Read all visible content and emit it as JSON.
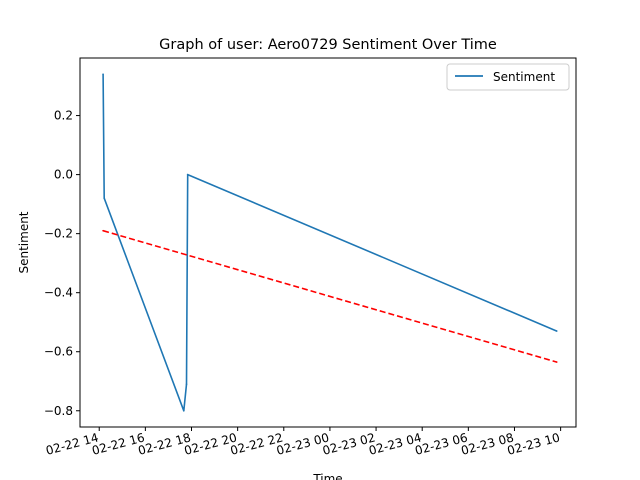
{
  "chart_data": {
    "type": "line",
    "title": "Graph of user: Aero0729 Sentiment Over Time",
    "xlabel": "Time",
    "ylabel": "Sentiment",
    "x_axis_kind": "datetime",
    "xlim": [
      "2022-02-22 13:10",
      "2022-02-23 10:40"
    ],
    "ylim": [
      -0.855,
      0.395
    ],
    "x_ticks": [
      {
        "t": "2022-02-22 14:00",
        "label": "02-22 14"
      },
      {
        "t": "2022-02-22 16:00",
        "label": "02-22 16"
      },
      {
        "t": "2022-02-22 18:00",
        "label": "02-22 18"
      },
      {
        "t": "2022-02-22 20:00",
        "label": "02-22 20"
      },
      {
        "t": "2022-02-22 22:00",
        "label": "02-22 22"
      },
      {
        "t": "2022-02-23 00:00",
        "label": "02-23 00"
      },
      {
        "t": "2022-02-23 02:00",
        "label": "02-23 02"
      },
      {
        "t": "2022-02-23 04:00",
        "label": "02-23 04"
      },
      {
        "t": "2022-02-23 06:00",
        "label": "02-23 06"
      },
      {
        "t": "2022-02-23 08:00",
        "label": "02-23 08"
      },
      {
        "t": "2022-02-23 10:00",
        "label": "02-23 10"
      }
    ],
    "y_ticks": [
      {
        "v": 0.2,
        "label": "0.2"
      },
      {
        "v": 0.0,
        "label": "0.0"
      },
      {
        "v": -0.2,
        "label": "−0.2"
      },
      {
        "v": -0.4,
        "label": "−0.4"
      },
      {
        "v": -0.6,
        "label": "−0.6"
      },
      {
        "v": -0.8,
        "label": "−0.8"
      }
    ],
    "series": [
      {
        "name": "Sentiment",
        "color": "#1f77b4",
        "style": "solid",
        "points": [
          {
            "x": "2022-02-22 14:10",
            "y": 0.34
          },
          {
            "x": "2022-02-22 14:13",
            "y": -0.08
          },
          {
            "x": "2022-02-22 17:40",
            "y": -0.8
          },
          {
            "x": "2022-02-22 17:47",
            "y": -0.71
          },
          {
            "x": "2022-02-22 17:50",
            "y": 0.0
          },
          {
            "x": "2022-02-23 09:50",
            "y": -0.53
          }
        ]
      },
      {
        "color": "#ff0000",
        "style": "dashed",
        "points": [
          {
            "x": "2022-02-22 14:10",
            "y": -0.19
          },
          {
            "x": "2022-02-23 09:50",
            "y": -0.635
          }
        ]
      }
    ],
    "grid": false,
    "legend": {
      "placement": "top-right",
      "entries": [
        "Sentiment"
      ]
    }
  }
}
